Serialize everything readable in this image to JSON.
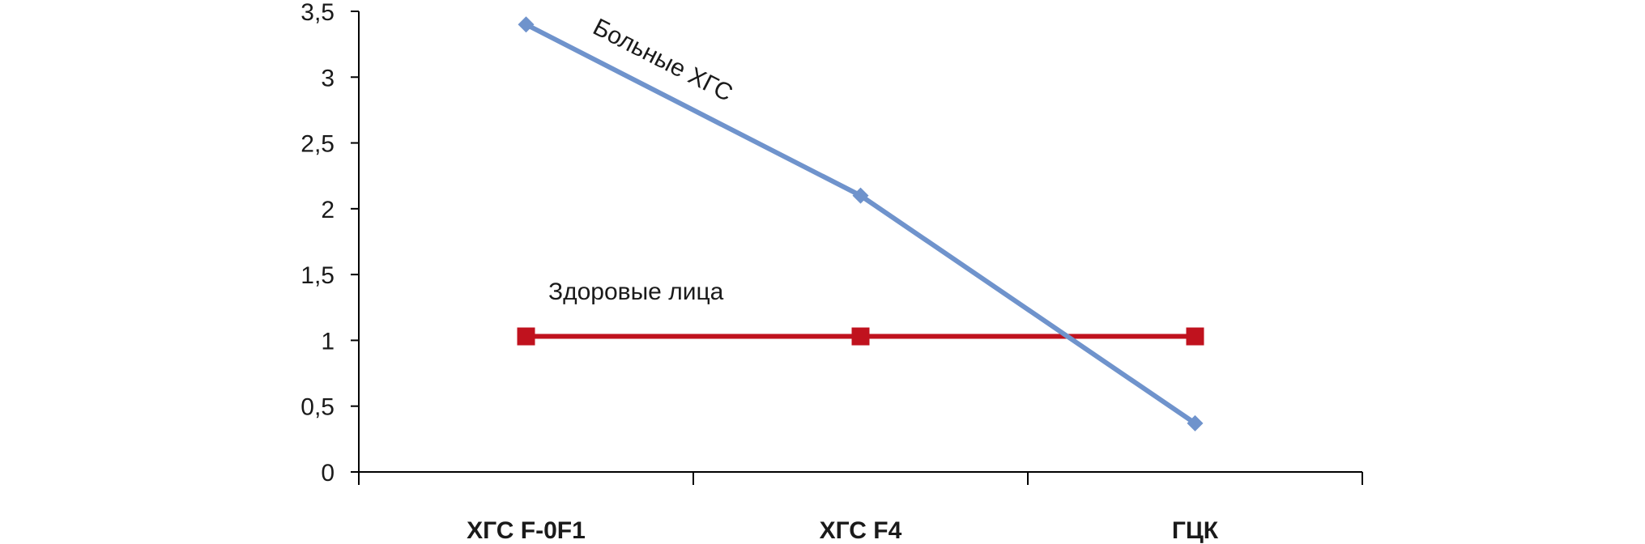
{
  "chart_data": {
    "type": "line",
    "categories": [
      "ХГС F-0F1",
      "ХГС F4",
      "ГЦК"
    ],
    "series": [
      {
        "name": "Больные ХГС",
        "values": [
          3.4,
          2.1,
          0.37
        ],
        "color": "#6f93cc",
        "marker": "diamond"
      },
      {
        "name": "Здоровые лица",
        "values": [
          1.03,
          1.03,
          1.03
        ],
        "color": "#c0121e",
        "marker": "square"
      }
    ],
    "y_ticks": [
      "0",
      "0,5",
      "1",
      "1,5",
      "2",
      "2,5",
      "3",
      "3,5"
    ],
    "ylim": [
      0,
      3.5
    ],
    "grid": false,
    "legend": "inline labels"
  }
}
